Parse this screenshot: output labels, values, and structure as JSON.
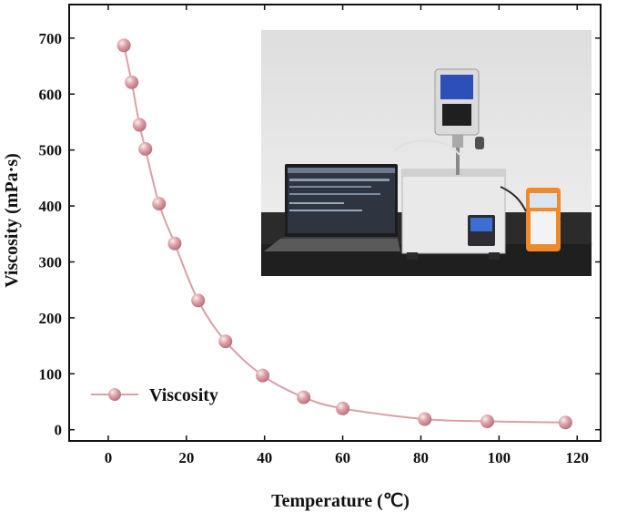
{
  "chart_data": {
    "type": "line",
    "xlabel": "Temperature (℃)",
    "ylabel": "Viscosity (mPa·s)",
    "xlim": [
      -10,
      126
    ],
    "ylim": [
      -20,
      760
    ],
    "xticks": [
      0,
      20,
      40,
      60,
      80,
      100,
      120
    ],
    "yticks": [
      0,
      100,
      200,
      300,
      400,
      500,
      600,
      700
    ],
    "grid": false,
    "legend_position": "bottom-left",
    "series": [
      {
        "name": "Viscosity",
        "color": "#d9a0a6",
        "marker": "circle",
        "x": [
          4,
          6,
          8,
          9.5,
          13,
          17,
          23,
          30,
          39.5,
          50,
          60,
          81,
          97,
          117
        ],
        "y": [
          687,
          621,
          545,
          502,
          404,
          333,
          231,
          158,
          97,
          58,
          38,
          19,
          15,
          13
        ]
      }
    ],
    "inset": "photo-of-viscometer-setup-with-laptop-and-thermometer"
  }
}
